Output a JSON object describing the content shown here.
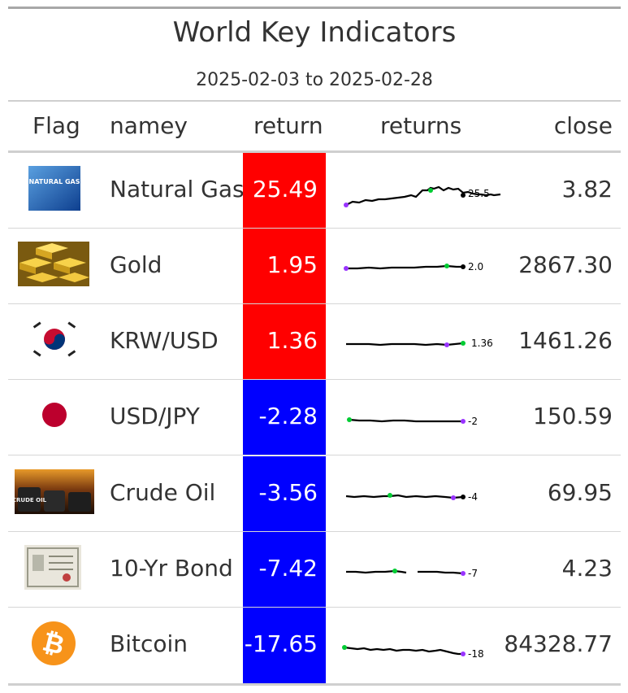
{
  "title": "World Key Indicators",
  "subtitle": "2025-02-03 to 2025-02-28",
  "columns": {
    "flag": "Flag",
    "name": "namey",
    "return": "return",
    "returns": "returns",
    "close": "close"
  },
  "colors": {
    "positive": "#ff0000",
    "negative": "#0000ff",
    "min_marker": "#9933ff",
    "max_marker": "#00cc33",
    "line": "#000000"
  },
  "rows": [
    {
      "name": "Natural Gas",
      "return": "25.49",
      "close": "3.82",
      "spark_label": "25.5",
      "flag_icon": "natural-gas-icon",
      "flag_text": "NATURAL GAS"
    },
    {
      "name": "Gold",
      "return": "1.95",
      "close": "2867.30",
      "spark_label": "2.0",
      "flag_icon": "gold-bars-icon"
    },
    {
      "name": "KRW/USD",
      "return": "1.36",
      "close": "1461.26",
      "spark_label": "1.36",
      "flag_icon": "south-korea-flag-icon"
    },
    {
      "name": "USD/JPY",
      "return": "-2.28",
      "close": "150.59",
      "spark_label": "-2",
      "flag_icon": "japan-flag-icon"
    },
    {
      "name": "Crude Oil",
      "return": "-3.56",
      "close": "69.95",
      "spark_label": "-4",
      "flag_icon": "crude-oil-icon",
      "flag_text": "CRUDE OIL"
    },
    {
      "name": "10-Yr Bond",
      "return": "-7.42",
      "close": "4.23",
      "spark_label": "-7",
      "flag_icon": "bond-certificate-icon"
    },
    {
      "name": "Bitcoin",
      "return": "-17.65",
      "close": "84328.77",
      "spark_label": "-18",
      "flag_icon": "bitcoin-icon"
    }
  ]
}
